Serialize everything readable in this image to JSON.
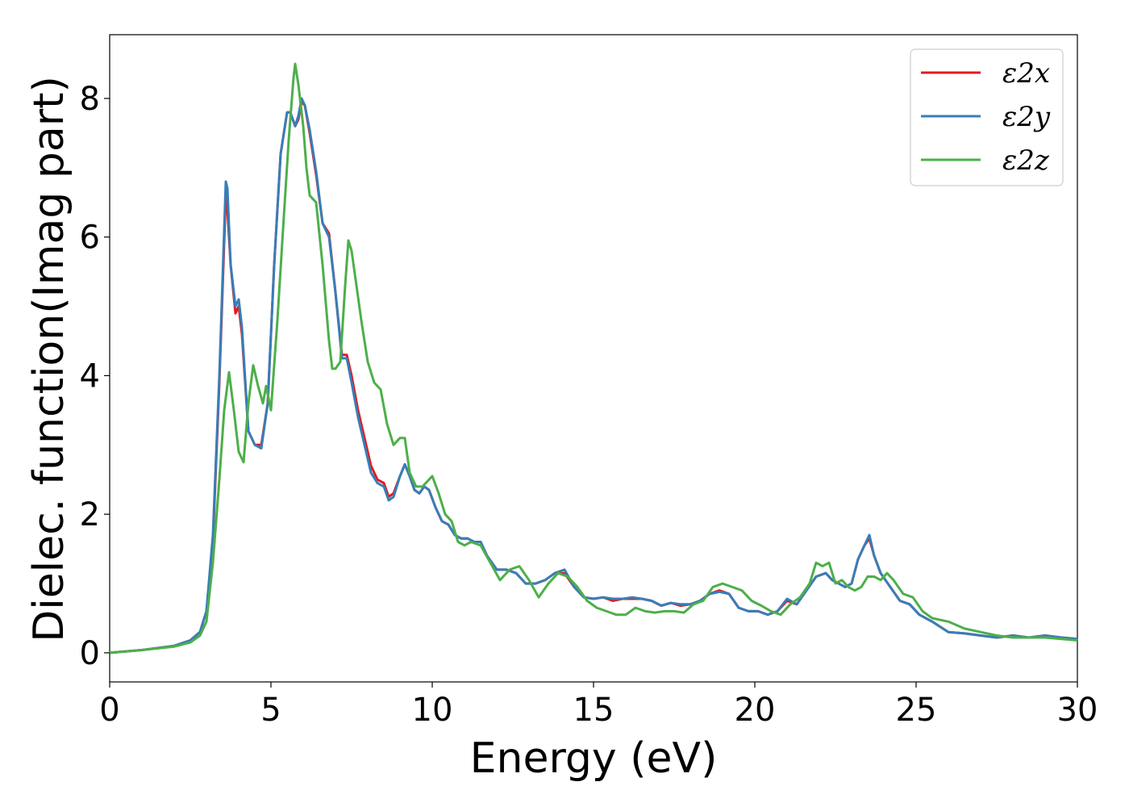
{
  "chart_data": {
    "type": "line",
    "title": "",
    "xlabel": "Energy (eV)",
    "ylabel": "Dielec. function(Imag part)",
    "xlim": [
      0,
      30
    ],
    "ylim": [
      -0.42,
      8.92
    ],
    "xticks": [
      0,
      5,
      10,
      15,
      20,
      25,
      30
    ],
    "xtick_labels": [
      "0",
      "5",
      "10",
      "15",
      "20",
      "25",
      "30"
    ],
    "yticks": [
      0,
      2,
      4,
      6,
      8
    ],
    "ytick_labels": [
      "0",
      "2",
      "4",
      "6",
      "8"
    ],
    "grid": false,
    "legend_position": "top-right",
    "series": [
      {
        "name": "ε2x",
        "color": "#e41a1c",
        "x": [
          0,
          1,
          2,
          2.5,
          2.8,
          3.0,
          3.2,
          3.4,
          3.6,
          3.65,
          3.75,
          3.9,
          4.0,
          4.1,
          4.3,
          4.5,
          4.7,
          4.9,
          5.1,
          5.3,
          5.5,
          5.6,
          5.75,
          5.85,
          5.95,
          6.05,
          6.2,
          6.4,
          6.6,
          6.8,
          7.0,
          7.2,
          7.35,
          7.5,
          7.7,
          7.9,
          8.1,
          8.3,
          8.5,
          8.65,
          8.8,
          9.0,
          9.15,
          9.3,
          9.45,
          9.6,
          9.75,
          9.9,
          10.1,
          10.3,
          10.5,
          10.7,
          10.9,
          11.1,
          11.3,
          11.5,
          11.7,
          12.0,
          12.3,
          12.6,
          12.9,
          13.2,
          13.5,
          13.8,
          14.1,
          14.4,
          14.7,
          15.0,
          15.3,
          15.6,
          15.9,
          16.2,
          16.5,
          16.8,
          17.1,
          17.4,
          17.7,
          18.0,
          18.3,
          18.6,
          18.9,
          19.2,
          19.5,
          19.8,
          20.1,
          20.4,
          20.7,
          21.0,
          21.3,
          21.6,
          21.9,
          22.2,
          22.4,
          22.6,
          22.8,
          23.0,
          23.2,
          23.4,
          23.55,
          23.7,
          23.9,
          24.2,
          24.5,
          24.8,
          25.1,
          25.5,
          26.0,
          26.5,
          27.0,
          27.5,
          28.0,
          28.5,
          29.0,
          29.5,
          30.0
        ],
        "values": [
          0.0,
          0.04,
          0.1,
          0.18,
          0.3,
          0.6,
          1.6,
          3.9,
          6.6,
          6.4,
          5.6,
          4.9,
          5.0,
          4.6,
          3.2,
          3.0,
          3.0,
          3.6,
          5.6,
          7.2,
          7.8,
          7.8,
          7.6,
          7.7,
          7.95,
          7.9,
          7.5,
          6.9,
          6.2,
          6.05,
          5.2,
          4.3,
          4.3,
          4.0,
          3.5,
          3.1,
          2.7,
          2.5,
          2.45,
          2.25,
          2.3,
          2.55,
          2.72,
          2.55,
          2.35,
          2.3,
          2.4,
          2.35,
          2.1,
          1.9,
          1.85,
          1.7,
          1.65,
          1.65,
          1.6,
          1.6,
          1.4,
          1.2,
          1.2,
          1.15,
          1.0,
          1.0,
          1.05,
          1.15,
          1.15,
          0.95,
          0.8,
          0.78,
          0.8,
          0.75,
          0.78,
          0.78,
          0.78,
          0.75,
          0.68,
          0.72,
          0.68,
          0.7,
          0.75,
          0.85,
          0.9,
          0.85,
          0.65,
          0.6,
          0.6,
          0.55,
          0.6,
          0.75,
          0.7,
          0.9,
          1.1,
          1.15,
          1.05,
          1.0,
          0.95,
          1.0,
          1.35,
          1.55,
          1.65,
          1.4,
          1.15,
          0.95,
          0.75,
          0.7,
          0.55,
          0.45,
          0.3,
          0.28,
          0.25,
          0.22,
          0.25,
          0.22,
          0.25,
          0.22,
          0.2
        ]
      },
      {
        "name": "ε2y",
        "color": "#377eb8",
        "x": [
          0,
          1,
          2,
          2.5,
          2.8,
          3.0,
          3.2,
          3.4,
          3.6,
          3.65,
          3.75,
          3.9,
          4.0,
          4.1,
          4.3,
          4.5,
          4.7,
          4.9,
          5.1,
          5.3,
          5.5,
          5.6,
          5.75,
          5.85,
          5.95,
          6.05,
          6.2,
          6.4,
          6.6,
          6.8,
          7.0,
          7.2,
          7.35,
          7.5,
          7.7,
          7.9,
          8.1,
          8.3,
          8.5,
          8.65,
          8.8,
          9.0,
          9.15,
          9.3,
          9.45,
          9.6,
          9.75,
          9.9,
          10.1,
          10.3,
          10.5,
          10.7,
          10.9,
          11.1,
          11.3,
          11.5,
          11.7,
          12.0,
          12.3,
          12.6,
          12.9,
          13.2,
          13.5,
          13.8,
          14.1,
          14.4,
          14.7,
          15.0,
          15.3,
          15.6,
          15.9,
          16.2,
          16.5,
          16.8,
          17.1,
          17.4,
          17.7,
          18.0,
          18.3,
          18.6,
          18.9,
          19.2,
          19.5,
          19.8,
          20.1,
          20.4,
          20.7,
          21.0,
          21.3,
          21.6,
          21.9,
          22.2,
          22.4,
          22.6,
          22.8,
          23.0,
          23.2,
          23.4,
          23.55,
          23.7,
          23.9,
          24.2,
          24.5,
          24.8,
          25.1,
          25.5,
          26.0,
          26.5,
          27.0,
          27.5,
          28.0,
          28.5,
          29.0,
          29.5,
          30.0
        ],
        "values": [
          0.0,
          0.04,
          0.1,
          0.18,
          0.3,
          0.6,
          1.7,
          4.0,
          6.8,
          6.7,
          5.6,
          5.0,
          5.1,
          4.7,
          3.2,
          3.0,
          2.95,
          3.6,
          5.6,
          7.2,
          7.8,
          7.8,
          7.6,
          7.75,
          8.0,
          7.9,
          7.55,
          6.95,
          6.2,
          6.0,
          5.2,
          4.25,
          4.25,
          3.9,
          3.4,
          3.0,
          2.6,
          2.45,
          2.4,
          2.2,
          2.25,
          2.55,
          2.72,
          2.55,
          2.35,
          2.3,
          2.4,
          2.35,
          2.1,
          1.9,
          1.85,
          1.7,
          1.65,
          1.65,
          1.6,
          1.6,
          1.4,
          1.2,
          1.2,
          1.15,
          1.0,
          1.0,
          1.05,
          1.15,
          1.2,
          0.95,
          0.8,
          0.78,
          0.8,
          0.78,
          0.78,
          0.8,
          0.78,
          0.75,
          0.68,
          0.72,
          0.7,
          0.7,
          0.75,
          0.85,
          0.88,
          0.85,
          0.65,
          0.6,
          0.6,
          0.55,
          0.6,
          0.78,
          0.7,
          0.9,
          1.1,
          1.15,
          1.05,
          1.0,
          0.95,
          1.0,
          1.35,
          1.55,
          1.7,
          1.4,
          1.15,
          0.95,
          0.75,
          0.7,
          0.55,
          0.45,
          0.3,
          0.28,
          0.25,
          0.22,
          0.25,
          0.22,
          0.25,
          0.22,
          0.2
        ]
      },
      {
        "name": "ε2z",
        "color": "#4daf4a",
        "x": [
          0,
          1,
          2,
          2.5,
          2.8,
          3.0,
          3.2,
          3.4,
          3.55,
          3.7,
          3.85,
          4.0,
          4.15,
          4.3,
          4.45,
          4.6,
          4.75,
          4.85,
          5.0,
          5.2,
          5.4,
          5.55,
          5.7,
          5.75,
          5.85,
          6.0,
          6.1,
          6.2,
          6.4,
          6.6,
          6.8,
          6.9,
          7.0,
          7.15,
          7.3,
          7.4,
          7.5,
          7.65,
          7.8,
          8.0,
          8.2,
          8.4,
          8.6,
          8.8,
          9.0,
          9.15,
          9.3,
          9.5,
          9.7,
          9.9,
          10.0,
          10.2,
          10.4,
          10.6,
          10.8,
          11.0,
          11.2,
          11.5,
          11.8,
          12.1,
          12.4,
          12.7,
          13.0,
          13.3,
          13.6,
          13.9,
          14.2,
          14.5,
          14.8,
          15.1,
          15.4,
          15.7,
          16.0,
          16.3,
          16.6,
          16.9,
          17.2,
          17.5,
          17.8,
          18.1,
          18.4,
          18.7,
          19.0,
          19.3,
          19.6,
          19.9,
          20.2,
          20.5,
          20.8,
          21.1,
          21.4,
          21.7,
          21.9,
          22.1,
          22.3,
          22.5,
          22.7,
          22.9,
          23.1,
          23.3,
          23.5,
          23.7,
          23.9,
          24.1,
          24.3,
          24.6,
          24.9,
          25.2,
          25.5,
          26.0,
          26.5,
          27.0,
          27.5,
          28.0,
          28.5,
          29.0,
          29.5,
          30.0
        ],
        "values": [
          0.0,
          0.04,
          0.09,
          0.15,
          0.25,
          0.45,
          1.3,
          2.5,
          3.5,
          4.05,
          3.5,
          2.9,
          2.75,
          3.6,
          4.15,
          3.85,
          3.6,
          3.85,
          3.5,
          4.8,
          6.3,
          7.4,
          8.3,
          8.5,
          8.2,
          7.6,
          7.0,
          6.6,
          6.5,
          5.6,
          4.5,
          4.1,
          4.1,
          4.2,
          5.3,
          5.95,
          5.8,
          5.3,
          4.8,
          4.2,
          3.9,
          3.8,
          3.3,
          3.0,
          3.1,
          3.1,
          2.6,
          2.4,
          2.4,
          2.5,
          2.55,
          2.3,
          2.0,
          1.9,
          1.6,
          1.55,
          1.6,
          1.55,
          1.3,
          1.05,
          1.2,
          1.25,
          1.05,
          0.8,
          1.0,
          1.15,
          1.1,
          0.95,
          0.75,
          0.65,
          0.6,
          0.55,
          0.55,
          0.65,
          0.6,
          0.58,
          0.6,
          0.6,
          0.58,
          0.7,
          0.75,
          0.95,
          1.0,
          0.95,
          0.9,
          0.75,
          0.68,
          0.6,
          0.55,
          0.7,
          0.8,
          1.0,
          1.3,
          1.25,
          1.3,
          1.0,
          1.05,
          0.95,
          0.9,
          0.95,
          1.1,
          1.1,
          1.05,
          1.15,
          1.05,
          0.85,
          0.8,
          0.6,
          0.5,
          0.45,
          0.35,
          0.3,
          0.25,
          0.22,
          0.22,
          0.22,
          0.2,
          0.18
        ]
      }
    ]
  }
}
